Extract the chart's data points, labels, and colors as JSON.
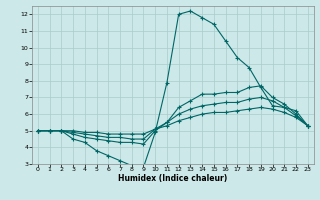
{
  "title": "",
  "xlabel": "Humidex (Indice chaleur)",
  "ylabel": "",
  "background_color": "#cce8e8",
  "grid_color": "#aacccc",
  "line_color": "#006666",
  "xlim": [
    -0.5,
    23.5
  ],
  "ylim": [
    3,
    12.5
  ],
  "xticks": [
    0,
    1,
    2,
    3,
    4,
    5,
    6,
    7,
    8,
    9,
    10,
    11,
    12,
    13,
    14,
    15,
    16,
    17,
    18,
    19,
    20,
    21,
    22,
    23
  ],
  "yticks": [
    3,
    4,
    5,
    6,
    7,
    8,
    9,
    10,
    11,
    12
  ],
  "lines": [
    {
      "x": [
        0,
        1,
        2,
        3,
        4,
        5,
        6,
        7,
        8,
        9,
        10,
        11,
        12,
        13,
        14,
        15,
        16,
        17,
        18,
        19,
        20,
        21,
        22,
        23
      ],
      "y": [
        5.0,
        5.0,
        5.0,
        4.5,
        4.3,
        3.8,
        3.5,
        3.2,
        2.9,
        2.8,
        4.9,
        7.9,
        12.0,
        12.2,
        11.8,
        11.4,
        10.4,
        9.4,
        8.8,
        7.6,
        6.5,
        6.4,
        6.2,
        5.3
      ]
    },
    {
      "x": [
        0,
        1,
        2,
        3,
        4,
        5,
        6,
        7,
        8,
        9,
        10,
        11,
        12,
        13,
        14,
        15,
        16,
        17,
        18,
        19,
        20,
        21,
        22,
        23
      ],
      "y": [
        5.0,
        5.0,
        5.0,
        4.8,
        4.6,
        4.5,
        4.4,
        4.3,
        4.3,
        4.2,
        5.0,
        5.5,
        6.4,
        6.8,
        7.2,
        7.2,
        7.3,
        7.3,
        7.6,
        7.7,
        7.0,
        6.6,
        6.0,
        5.3
      ]
    },
    {
      "x": [
        0,
        1,
        2,
        3,
        4,
        5,
        6,
        7,
        8,
        9,
        10,
        11,
        12,
        13,
        14,
        15,
        16,
        17,
        18,
        19,
        20,
        21,
        22,
        23
      ],
      "y": [
        5.0,
        5.0,
        5.0,
        4.9,
        4.8,
        4.7,
        4.6,
        4.6,
        4.5,
        4.5,
        5.1,
        5.5,
        6.0,
        6.3,
        6.5,
        6.6,
        6.7,
        6.7,
        6.9,
        7.0,
        6.8,
        6.4,
        5.9,
        5.3
      ]
    },
    {
      "x": [
        0,
        1,
        2,
        3,
        4,
        5,
        6,
        7,
        8,
        9,
        10,
        11,
        12,
        13,
        14,
        15,
        16,
        17,
        18,
        19,
        20,
        21,
        22,
        23
      ],
      "y": [
        5.0,
        5.0,
        5.0,
        5.0,
        4.9,
        4.9,
        4.8,
        4.8,
        4.8,
        4.8,
        5.1,
        5.3,
        5.6,
        5.8,
        6.0,
        6.1,
        6.1,
        6.2,
        6.3,
        6.4,
        6.3,
        6.1,
        5.8,
        5.3
      ]
    }
  ]
}
